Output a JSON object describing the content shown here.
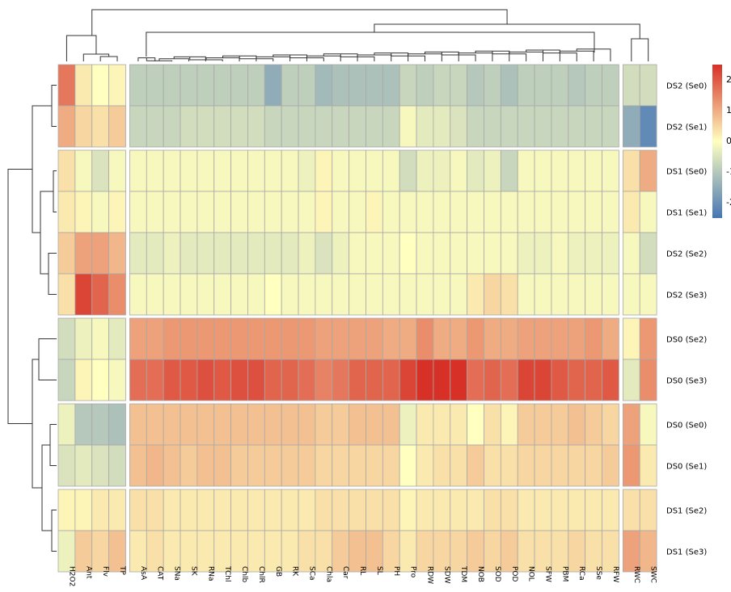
{
  "chart_data": {
    "type": "heatmap",
    "title": "",
    "xlabel": "",
    "ylabel": "",
    "colorscale": {
      "low": "#4575b4",
      "mid": "#ffffbf",
      "high": "#d73027",
      "range": [
        -2,
        2
      ],
      "tick_labels": [
        "2",
        "1",
        "0",
        "-1",
        "-2"
      ]
    },
    "columns": [
      "H2O2",
      "Ant",
      "Flv",
      "TP",
      "AsA",
      "CAT",
      "SNa",
      "SK",
      "RNa",
      "TChl",
      "Chlb",
      "ChlR",
      "GB",
      "RK",
      "SCa",
      "Chla",
      "Car",
      "RL",
      "SL",
      "PH",
      "Pro",
      "RDW",
      "SDW",
      "TDM",
      "NOB",
      "SOD",
      "POD",
      "NOL",
      "SFW",
      "PBM",
      "RCa",
      "SSe",
      "RFW",
      "RWC",
      "SWC"
    ],
    "rows": [
      "DS2 (Se0)",
      "DS2 (Se1)",
      "DS1 (Se0)",
      "DS1 (Se1)",
      "DS2 (Se2)",
      "DS2 (Se3)",
      "DS0 (Se2)",
      "DS0 (Se3)",
      "DS0 (Se0)",
      "DS0 (Se1)",
      "DS1 (Se2)",
      "DS1 (Se3)"
    ],
    "values": [
      [
        1.3,
        0.2,
        0.0,
        0.1,
        -0.7,
        -0.7,
        -0.7,
        -0.7,
        -0.7,
        -0.7,
        -0.7,
        -0.7,
        -1.2,
        -0.7,
        -0.7,
        -1.0,
        -0.9,
        -0.9,
        -0.9,
        -0.9,
        -0.6,
        -0.7,
        -0.6,
        -0.6,
        -0.8,
        -0.7,
        -0.9,
        -0.7,
        -0.7,
        -0.7,
        -0.8,
        -0.7,
        -0.7,
        -0.5,
        -0.5
      ],
      [
        0.8,
        0.4,
        0.3,
        0.5,
        -0.6,
        -0.6,
        -0.6,
        -0.5,
        -0.5,
        -0.5,
        -0.5,
        -0.5,
        -0.6,
        -0.6,
        -0.6,
        -0.6,
        -0.6,
        -0.6,
        -0.6,
        -0.6,
        -0.1,
        -0.3,
        -0.3,
        -0.4,
        -0.6,
        -0.6,
        -0.6,
        -0.6,
        -0.6,
        -0.6,
        -0.6,
        -0.6,
        -0.6,
        -1.2,
        -1.7
      ],
      [
        0.3,
        -0.1,
        -0.4,
        -0.1,
        -0.1,
        -0.1,
        -0.1,
        -0.1,
        -0.1,
        -0.1,
        -0.1,
        -0.1,
        -0.1,
        -0.1,
        -0.2,
        0.1,
        -0.1,
        -0.1,
        -0.1,
        -0.1,
        -0.5,
        -0.2,
        -0.2,
        -0.1,
        -0.3,
        -0.2,
        -0.6,
        -0.1,
        -0.1,
        -0.1,
        -0.1,
        -0.1,
        -0.1,
        0.3,
        0.8
      ],
      [
        0.2,
        0.1,
        -0.1,
        0.1,
        -0.1,
        -0.1,
        -0.1,
        -0.1,
        -0.1,
        -0.1,
        -0.1,
        -0.1,
        -0.1,
        -0.1,
        -0.1,
        0.1,
        -0.1,
        -0.1,
        0.1,
        -0.1,
        -0.1,
        -0.1,
        -0.1,
        -0.1,
        -0.1,
        -0.1,
        -0.1,
        -0.1,
        -0.1,
        -0.1,
        -0.1,
        -0.1,
        -0.1,
        0.2,
        -0.1
      ],
      [
        0.5,
        0.9,
        0.9,
        0.7,
        -0.3,
        -0.3,
        -0.2,
        -0.3,
        -0.3,
        -0.3,
        -0.3,
        -0.3,
        -0.3,
        -0.3,
        -0.2,
        -0.4,
        -0.2,
        -0.1,
        -0.1,
        -0.1,
        0.0,
        -0.1,
        -0.1,
        -0.1,
        -0.1,
        -0.1,
        -0.1,
        -0.2,
        -0.2,
        -0.1,
        -0.2,
        -0.2,
        -0.2,
        -0.1,
        -0.5
      ],
      [
        0.3,
        1.8,
        1.5,
        1.1,
        -0.1,
        -0.1,
        -0.1,
        -0.1,
        -0.1,
        -0.1,
        -0.1,
        -0.1,
        0.0,
        -0.1,
        -0.1,
        -0.1,
        -0.1,
        -0.1,
        -0.1,
        -0.1,
        -0.1,
        -0.1,
        -0.1,
        -0.1,
        0.2,
        0.4,
        0.3,
        -0.1,
        -0.1,
        -0.1,
        -0.1,
        -0.1,
        -0.1,
        -0.1,
        -0.1
      ],
      [
        -0.5,
        -0.2,
        -0.1,
        -0.3,
        0.9,
        0.9,
        1.0,
        1.0,
        1.0,
        1.0,
        1.0,
        1.0,
        1.0,
        1.0,
        1.0,
        0.9,
        0.9,
        0.9,
        0.9,
        0.8,
        0.8,
        1.1,
        0.8,
        0.8,
        1.0,
        0.8,
        0.8,
        0.9,
        0.9,
        0.9,
        0.9,
        1.0,
        0.8,
        0.1,
        1.0
      ],
      [
        -0.6,
        0.1,
        0.0,
        -0.1,
        1.4,
        1.4,
        1.6,
        1.6,
        1.7,
        1.6,
        1.7,
        1.7,
        1.5,
        1.5,
        1.4,
        1.2,
        1.3,
        1.5,
        1.5,
        1.5,
        1.8,
        2.0,
        2.1,
        2.0,
        1.4,
        1.5,
        1.4,
        1.8,
        1.8,
        1.6,
        1.5,
        1.5,
        1.6,
        -0.3,
        1.1
      ],
      [
        -0.2,
        -0.8,
        -0.8,
        -0.9,
        0.6,
        0.6,
        0.6,
        0.6,
        0.6,
        0.6,
        0.6,
        0.6,
        0.6,
        0.6,
        0.6,
        0.5,
        0.5,
        0.6,
        0.6,
        0.6,
        -0.2,
        0.2,
        0.2,
        0.2,
        0.0,
        0.3,
        0.1,
        0.5,
        0.5,
        0.5,
        0.6,
        0.5,
        0.4,
        0.9,
        -0.1
      ],
      [
        -0.4,
        -0.3,
        -0.4,
        -0.5,
        0.6,
        0.7,
        0.6,
        0.5,
        0.6,
        0.6,
        0.5,
        0.5,
        0.5,
        0.5,
        0.5,
        0.4,
        0.4,
        0.4,
        0.4,
        0.4,
        0.0,
        0.2,
        0.3,
        0.3,
        0.5,
        0.3,
        0.3,
        0.4,
        0.4,
        0.4,
        0.4,
        0.4,
        0.5,
        1.0,
        0.2
      ],
      [
        0.1,
        0.1,
        0.2,
        0.2,
        0.3,
        0.3,
        0.2,
        0.2,
        0.2,
        0.2,
        0.2,
        0.2,
        0.2,
        0.2,
        0.2,
        0.3,
        0.3,
        0.3,
        0.3,
        0.3,
        0.1,
        0.2,
        0.2,
        0.2,
        0.2,
        0.3,
        0.3,
        0.2,
        0.2,
        0.2,
        0.2,
        0.2,
        0.2,
        0.3,
        0.3
      ],
      [
        -0.2,
        0.5,
        0.4,
        0.6,
        0.2,
        0.3,
        0.2,
        0.2,
        0.2,
        0.2,
        0.2,
        0.2,
        0.2,
        0.2,
        0.3,
        0.3,
        0.5,
        0.6,
        0.6,
        0.4,
        0.2,
        0.4,
        0.4,
        0.4,
        0.5,
        0.4,
        0.5,
        0.3,
        0.3,
        0.3,
        0.4,
        0.3,
        0.3,
        0.9,
        0.7
      ]
    ]
  }
}
